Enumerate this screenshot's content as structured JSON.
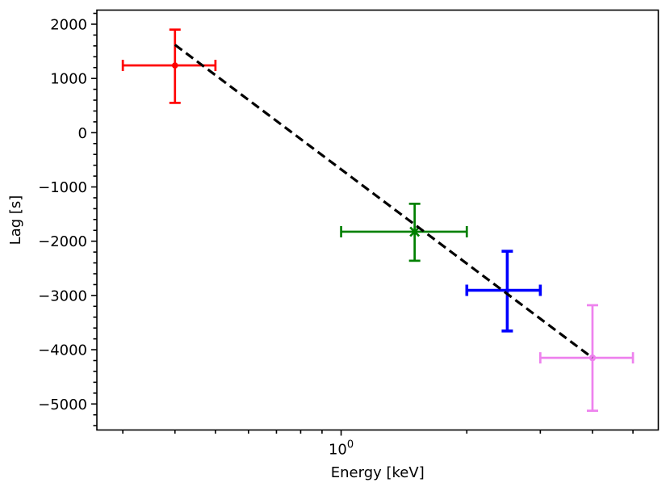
{
  "chart_data": {
    "type": "scatter",
    "title": "",
    "xlabel": "Energy [keV]",
    "ylabel": "Lag [s]",
    "xscale": "log",
    "yscale": "linear",
    "xlim": [
      0.26,
      5.75
    ],
    "ylim": [
      -5480,
      2260
    ],
    "grid": false,
    "legend": false,
    "axis_color": "#000000",
    "background_color": "#ffffff",
    "x_major_ticks": [
      {
        "value": 1,
        "label_base": "10",
        "label_exp": "0"
      }
    ],
    "x_minor_ticks": [
      0.3,
      0.4,
      0.5,
      0.6,
      0.7,
      0.8,
      0.9,
      2,
      3,
      4,
      5
    ],
    "y_major_ticks": [
      {
        "value": 2000,
        "label": "2000"
      },
      {
        "value": 1000,
        "label": "1000"
      },
      {
        "value": 0,
        "label": "0"
      },
      {
        "value": -1000,
        "label": "−1000"
      },
      {
        "value": -2000,
        "label": "−2000"
      },
      {
        "value": -3000,
        "label": "−3000"
      },
      {
        "value": -4000,
        "label": "−4000"
      },
      {
        "value": -5000,
        "label": "−5000"
      }
    ],
    "y_minor_step": 200,
    "series": [
      {
        "name": "point-red",
        "color": "#ff0000",
        "marker": "circle",
        "marker_size": 3.8,
        "x": 0.4,
        "x_lo": 0.3,
        "x_hi": 0.5,
        "y": 1240,
        "y_lo": 550,
        "y_hi": 1900,
        "line_width": 2.7
      },
      {
        "name": "point-green",
        "color": "#008000",
        "marker": "x",
        "marker_size": 5.5,
        "x": 1.5,
        "x_lo": 1.0,
        "x_hi": 2.0,
        "y": -1825,
        "y_lo": -2360,
        "y_hi": -1310,
        "line_width": 2.7
      },
      {
        "name": "point-blue",
        "color": "#0000ff",
        "marker": "none",
        "marker_size": 0,
        "x": 2.5,
        "x_lo": 2.0,
        "x_hi": 3.0,
        "y": -2905,
        "y_lo": -3655,
        "y_hi": -2185,
        "line_width": 3.6
      },
      {
        "name": "point-violet",
        "color": "#ee82ee",
        "marker": "circle",
        "marker_size": 4.2,
        "x": 4.0,
        "x_lo": 3.0,
        "x_hi": 5.0,
        "y": -4150,
        "y_lo": -5125,
        "y_hi": -3180,
        "line_width": 2.7
      }
    ],
    "fit_line": {
      "name": "dashed-fit-line",
      "style": "dashed",
      "color": "#000000",
      "line_width": 3.2,
      "x": [
        0.4,
        4.0
      ],
      "y": [
        1620,
        -4150
      ]
    }
  }
}
